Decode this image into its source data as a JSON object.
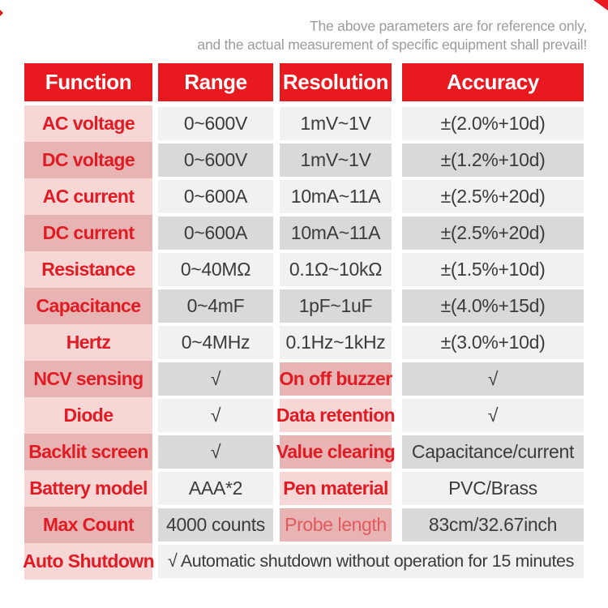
{
  "banner": {
    "line1": "The above parameters are for reference only,",
    "line2": "and the actual measurement of specific equipment shall prevail!"
  },
  "colors": {
    "header_red": "#e8191f",
    "func_red": "#e01b23",
    "func_red_soft": "#e25a5e",
    "pink_light": "#f7d6d6",
    "pink_dark": "#e7b3b3",
    "gray_light": "#f1f1f0",
    "gray_dark": "#d9d9d9",
    "value_text": "#3b3b3b",
    "banner_text": "#9b9b9b"
  },
  "table": {
    "header": [
      "Function",
      "Range",
      "Resolution",
      "Accuracy"
    ],
    "rows": [
      {
        "shade": "light",
        "cells": [
          {
            "kind": "func",
            "text": "AC voltage"
          },
          {
            "kind": "value",
            "text": "0~600V"
          },
          {
            "kind": "value",
            "text": "1mV~1V"
          },
          {
            "kind": "value",
            "text": "±(2.0%+10d)"
          }
        ]
      },
      {
        "shade": "dark",
        "cells": [
          {
            "kind": "func",
            "text": "DC voltage"
          },
          {
            "kind": "value",
            "text": "0~600V"
          },
          {
            "kind": "value",
            "text": "1mV~1V"
          },
          {
            "kind": "value",
            "text": "±(1.2%+10d)"
          }
        ]
      },
      {
        "shade": "light",
        "cells": [
          {
            "kind": "func",
            "text": "AC current"
          },
          {
            "kind": "value",
            "text": "0~600A"
          },
          {
            "kind": "value",
            "text": "10mA~11A"
          },
          {
            "kind": "value",
            "text": "±(2.5%+20d)"
          }
        ]
      },
      {
        "shade": "dark",
        "cells": [
          {
            "kind": "func",
            "text": "DC current"
          },
          {
            "kind": "value",
            "text": "0~600A"
          },
          {
            "kind": "value",
            "text": "10mA~11A"
          },
          {
            "kind": "value",
            "text": "±(2.5%+20d)"
          }
        ]
      },
      {
        "shade": "light",
        "cells": [
          {
            "kind": "func",
            "text": "Resistance"
          },
          {
            "kind": "value",
            "text": "0~40MΩ"
          },
          {
            "kind": "value",
            "text": "0.1Ω~10kΩ"
          },
          {
            "kind": "value",
            "text": "±(1.5%+10d)"
          }
        ]
      },
      {
        "shade": "dark",
        "cells": [
          {
            "kind": "func",
            "text": "Capacitance"
          },
          {
            "kind": "value",
            "text": "0~4mF"
          },
          {
            "kind": "value",
            "text": "1pF~1uF"
          },
          {
            "kind": "value",
            "text": "±(4.0%+15d)"
          }
        ]
      },
      {
        "shade": "light",
        "cells": [
          {
            "kind": "func",
            "text": "Hertz"
          },
          {
            "kind": "value",
            "text": "0~4MHz"
          },
          {
            "kind": "value",
            "text": "0.1Hz~1kHz"
          },
          {
            "kind": "value",
            "text": "±(3.0%+10d)"
          }
        ]
      },
      {
        "shade": "dark",
        "cells": [
          {
            "kind": "func",
            "text": "NCV sensing"
          },
          {
            "kind": "value",
            "text": "√"
          },
          {
            "kind": "pinkhead",
            "text": "On off buzzer"
          },
          {
            "kind": "value",
            "text": "√"
          }
        ]
      },
      {
        "shade": "light",
        "cells": [
          {
            "kind": "func",
            "text": "Diode"
          },
          {
            "kind": "value",
            "text": "√"
          },
          {
            "kind": "pinkhead",
            "text": "Data retention"
          },
          {
            "kind": "value",
            "text": "√"
          }
        ]
      },
      {
        "shade": "dark",
        "cells": [
          {
            "kind": "func",
            "text": "Backlit screen"
          },
          {
            "kind": "value",
            "text": "√"
          },
          {
            "kind": "pinkhead",
            "text": "Value clearing"
          },
          {
            "kind": "value",
            "text": "Capacitance/current"
          }
        ]
      },
      {
        "shade": "light",
        "cells": [
          {
            "kind": "func",
            "text": "Battery model"
          },
          {
            "kind": "value",
            "text": "AAA*2"
          },
          {
            "kind": "pinkhead",
            "text": "Pen material"
          },
          {
            "kind": "value",
            "text": "PVC/Brass"
          }
        ]
      },
      {
        "shade": "dark",
        "cells": [
          {
            "kind": "func",
            "text": "Max Count"
          },
          {
            "kind": "value",
            "text": "4000 counts"
          },
          {
            "kind": "pinkreg",
            "text": "Probe length"
          },
          {
            "kind": "value",
            "text": "83cm/32.67inch"
          }
        ]
      },
      {
        "shade": "light",
        "cells": [
          {
            "kind": "func",
            "text": "Auto Shutdown"
          },
          {
            "kind": "value",
            "text": "√ Automatic shutdown without operation for 15 minutes",
            "span": 3
          }
        ]
      }
    ]
  }
}
